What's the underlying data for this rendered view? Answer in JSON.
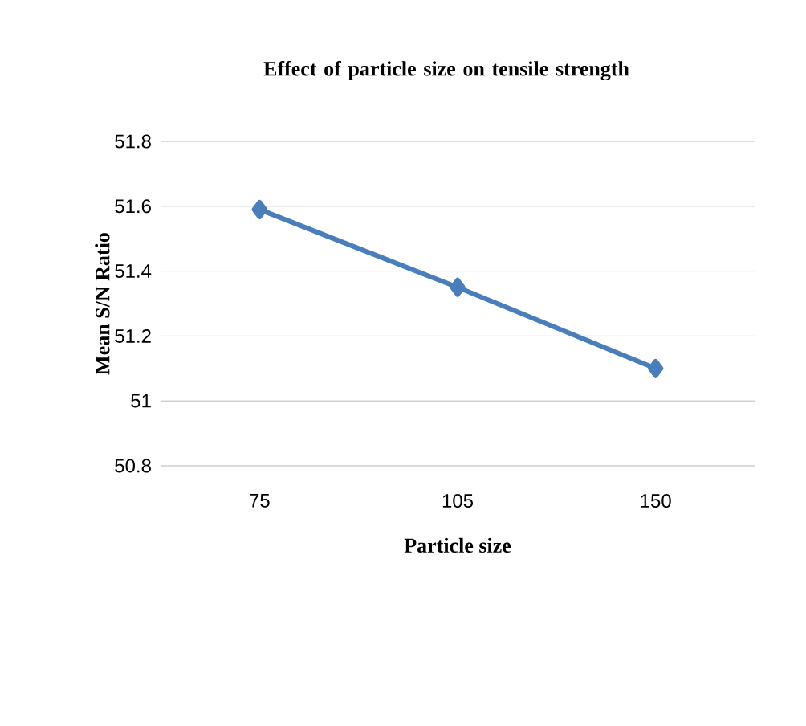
{
  "chart_data": {
    "type": "line",
    "title": "Effect of particle size on tensile strength",
    "xlabel": "Particle size",
    "ylabel": "Mean S/N Ratio",
    "categories": [
      "75",
      "105",
      "150"
    ],
    "series": [
      {
        "color": "#4a7ebb",
        "values": [
          51.59,
          51.35,
          51.1
        ]
      }
    ],
    "ylim": [
      50.8,
      51.8
    ],
    "yticks": [
      50.8,
      51,
      51.2,
      51.4,
      51.6,
      51.8
    ],
    "grid": "y",
    "marker": "diamond",
    "line_style": "solid"
  }
}
